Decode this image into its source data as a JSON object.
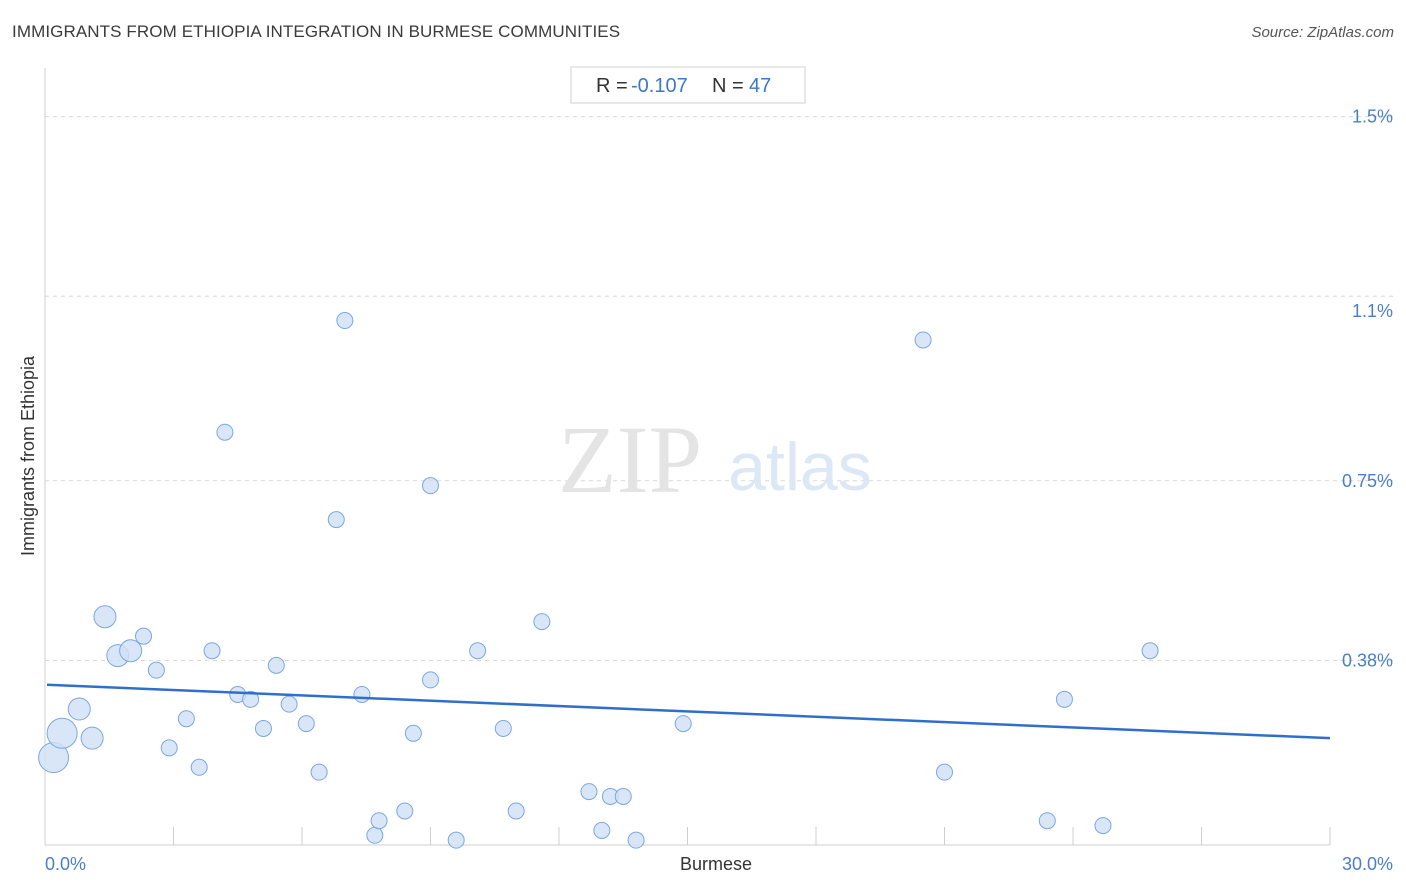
{
  "title": "IMMIGRANTS FROM ETHIOPIA INTEGRATION IN BURMESE COMMUNITIES",
  "source": "Source: ZipAtlas.com",
  "watermark": {
    "zip": "ZIP",
    "atlas": "atlas"
  },
  "stats": {
    "r_label": "R =",
    "r_value": "-0.107",
    "n_label": "N =",
    "n_value": "47"
  },
  "colors": {
    "point_fill": "#cfe0f5",
    "point_stroke": "#7aa8e0",
    "trend": "#2f6fcc",
    "tick_text": "#4a7fc8",
    "grid": "#d8d8d8"
  },
  "chart_data": {
    "type": "scatter",
    "xlabel": "Burmese",
    "ylabel": "Immigrants from Ethiopia",
    "xlim": [
      0,
      30
    ],
    "ylim": [
      0,
      1.6
    ],
    "x_tick_labels": [
      {
        "value": 0,
        "label": "0.0%"
      },
      {
        "value": 30,
        "label": "30.0%"
      }
    ],
    "y_tick_labels": [
      {
        "value": 0.38,
        "label": "0.38%"
      },
      {
        "value": 0.75,
        "label": "0.75%"
      },
      {
        "value": 1.1,
        "label": "1.1%"
      },
      {
        "value": 1.5,
        "label": "1.5%"
      }
    ],
    "y_gridlines": [
      0.38,
      0.75,
      1.13,
      1.5
    ],
    "grid": "horizontal-dashed",
    "trendline": {
      "x": [
        0,
        30
      ],
      "y": [
        0.33,
        0.22
      ]
    },
    "points": [
      {
        "x": 0.2,
        "y": 0.18,
        "size": "large"
      },
      {
        "x": 0.4,
        "y": 0.23,
        "size": "large"
      },
      {
        "x": 0.8,
        "y": 0.28,
        "size": "medium"
      },
      {
        "x": 1.1,
        "y": 0.22,
        "size": "medium"
      },
      {
        "x": 1.4,
        "y": 0.47,
        "size": "medium"
      },
      {
        "x": 1.7,
        "y": 0.39,
        "size": "medium"
      },
      {
        "x": 2.0,
        "y": 0.4,
        "size": "medium"
      },
      {
        "x": 2.3,
        "y": 0.43,
        "size": "small"
      },
      {
        "x": 2.6,
        "y": 0.36,
        "size": "small"
      },
      {
        "x": 2.9,
        "y": 0.2,
        "size": "small"
      },
      {
        "x": 3.3,
        "y": 0.26,
        "size": "small"
      },
      {
        "x": 3.6,
        "y": 0.16,
        "size": "small"
      },
      {
        "x": 3.9,
        "y": 0.4,
        "size": "small"
      },
      {
        "x": 4.2,
        "y": 0.85,
        "size": "small"
      },
      {
        "x": 4.5,
        "y": 0.31,
        "size": "small"
      },
      {
        "x": 4.8,
        "y": 0.3,
        "size": "small"
      },
      {
        "x": 5.1,
        "y": 0.24,
        "size": "small"
      },
      {
        "x": 5.4,
        "y": 0.37,
        "size": "small"
      },
      {
        "x": 5.7,
        "y": 0.29,
        "size": "small"
      },
      {
        "x": 6.1,
        "y": 0.25,
        "size": "small"
      },
      {
        "x": 6.4,
        "y": 0.15,
        "size": "small"
      },
      {
        "x": 6.8,
        "y": 0.67,
        "size": "small"
      },
      {
        "x": 7.0,
        "y": 1.08,
        "size": "small"
      },
      {
        "x": 7.4,
        "y": 0.31,
        "size": "small"
      },
      {
        "x": 7.7,
        "y": 0.02,
        "size": "small"
      },
      {
        "x": 7.8,
        "y": 0.05,
        "size": "small"
      },
      {
        "x": 8.4,
        "y": 0.07,
        "size": "small"
      },
      {
        "x": 8.6,
        "y": 0.23,
        "size": "small"
      },
      {
        "x": 9.0,
        "y": 0.34,
        "size": "small"
      },
      {
        "x": 9.0,
        "y": 0.74,
        "size": "small"
      },
      {
        "x": 9.6,
        "y": 0.01,
        "size": "small"
      },
      {
        "x": 10.1,
        "y": 0.4,
        "size": "small"
      },
      {
        "x": 10.7,
        "y": 0.24,
        "size": "small"
      },
      {
        "x": 11.0,
        "y": 0.07,
        "size": "small"
      },
      {
        "x": 11.6,
        "y": 0.46,
        "size": "small"
      },
      {
        "x": 12.7,
        "y": 0.11,
        "size": "small"
      },
      {
        "x": 13.0,
        "y": 0.03,
        "size": "small"
      },
      {
        "x": 13.2,
        "y": 0.1,
        "size": "small"
      },
      {
        "x": 13.5,
        "y": 0.1,
        "size": "small"
      },
      {
        "x": 13.8,
        "y": 0.01,
        "size": "small"
      },
      {
        "x": 14.9,
        "y": 0.25,
        "size": "small"
      },
      {
        "x": 20.5,
        "y": 1.04,
        "size": "small"
      },
      {
        "x": 21.0,
        "y": 0.15,
        "size": "small"
      },
      {
        "x": 23.4,
        "y": 0.05,
        "size": "small"
      },
      {
        "x": 23.8,
        "y": 0.3,
        "size": "small"
      },
      {
        "x": 24.7,
        "y": 0.04,
        "size": "small"
      },
      {
        "x": 25.8,
        "y": 0.4,
        "size": "small"
      }
    ]
  }
}
